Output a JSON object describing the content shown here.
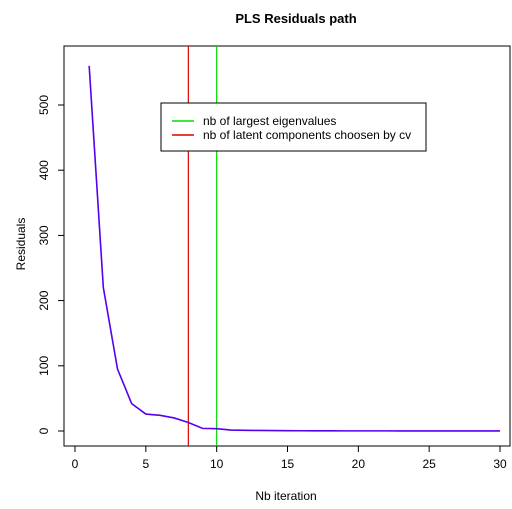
{
  "chart_data": {
    "type": "line",
    "title": "PLS Residuals path",
    "xlabel": "Nb iteration",
    "ylabel": "Residuals",
    "xlim": [
      0,
      30
    ],
    "ylim": [
      0,
      560
    ],
    "x_ticks": [
      0,
      5,
      10,
      15,
      20,
      25,
      30
    ],
    "y_ticks": [
      0,
      100,
      200,
      300,
      400,
      500
    ],
    "series": [
      {
        "color": "#5500ee",
        "x": [
          1,
          2,
          3,
          4,
          5,
          6,
          7,
          8,
          9,
          10,
          11,
          12,
          13,
          14,
          15,
          16,
          17,
          18,
          19,
          20,
          21,
          22,
          23,
          24,
          25,
          26,
          27,
          28,
          29,
          30
        ],
        "values": [
          560,
          220,
          95,
          42,
          26,
          24,
          20,
          13,
          4,
          3.5,
          1.5,
          1,
          0.8,
          0.6,
          0.5,
          0.4,
          0.3,
          0.3,
          0.2,
          0.2,
          0.2,
          0.2,
          0.1,
          0.1,
          0.1,
          0.1,
          0.1,
          0.1,
          0.1,
          0.1
        ]
      }
    ],
    "vlines": [
      {
        "x": 8,
        "color": "#dd0000"
      },
      {
        "x": 10,
        "color": "#00dd00"
      }
    ],
    "legend": {
      "placement": "top-center",
      "entries": [
        {
          "label": "nb of largest eigenvalues",
          "color": "#00dd00"
        },
        {
          "label": "nb of latent components choosen by cv",
          "color": "#dd0000"
        }
      ]
    },
    "grid": false
  }
}
